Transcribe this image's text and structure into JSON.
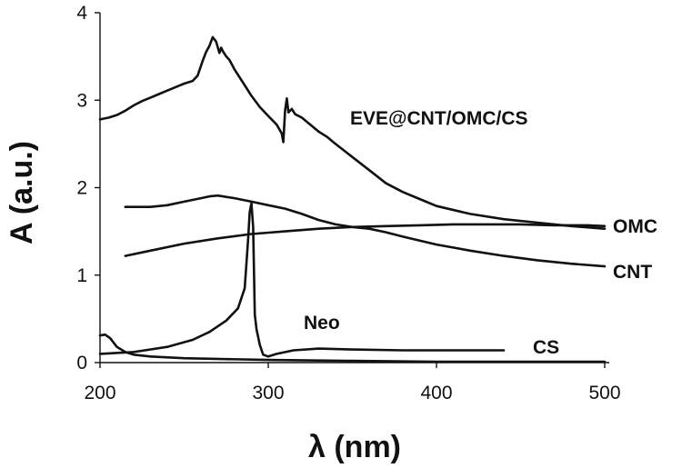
{
  "chart_data": {
    "type": "line",
    "xlabel": "λ (nm)",
    "ylabel": "A (a.u.)",
    "xlim": [
      200,
      500
    ],
    "ylim": [
      0,
      4
    ],
    "xticks": [
      "200",
      "300",
      "400",
      "500"
    ],
    "yticks": [
      "0",
      "1",
      "2",
      "3",
      "4"
    ],
    "grid": false,
    "legend": "inline labels",
    "line_color": "#111111",
    "series": [
      {
        "name": "EVE@CNT/OMC/CS",
        "x": [
          200,
          205,
          210,
          215,
          220,
          225,
          230,
          235,
          240,
          245,
          250,
          255,
          258,
          261,
          263,
          265,
          267,
          269,
          271,
          272,
          273,
          275,
          277,
          280,
          285,
          290,
          295,
          300,
          305,
          308,
          309,
          310,
          311,
          312,
          314,
          316,
          320,
          325,
          330,
          335,
          340,
          350,
          360,
          370,
          380,
          390,
          400,
          420,
          440,
          460,
          480,
          500
        ],
        "y": [
          2.78,
          2.8,
          2.83,
          2.88,
          2.94,
          2.99,
          3.03,
          3.07,
          3.11,
          3.15,
          3.19,
          3.22,
          3.28,
          3.45,
          3.55,
          3.62,
          3.72,
          3.67,
          3.54,
          3.6,
          3.56,
          3.5,
          3.46,
          3.35,
          3.2,
          3.05,
          2.92,
          2.82,
          2.72,
          2.62,
          2.52,
          2.88,
          3.02,
          2.86,
          2.9,
          2.84,
          2.8,
          2.72,
          2.64,
          2.58,
          2.5,
          2.35,
          2.2,
          2.05,
          1.95,
          1.87,
          1.79,
          1.7,
          1.64,
          1.6,
          1.56,
          1.53
        ]
      },
      {
        "name": "OMC",
        "x": [
          215,
          230,
          240,
          250,
          260,
          265,
          270,
          280,
          290,
          300,
          310,
          320,
          330,
          340,
          350,
          360,
          370,
          380,
          400,
          420,
          440,
          460,
          480,
          500
        ],
        "y": [
          1.78,
          1.78,
          1.8,
          1.84,
          1.88,
          1.9,
          1.91,
          1.88,
          1.84,
          1.8,
          1.76,
          1.7,
          1.63,
          1.58,
          1.55,
          1.53,
          1.49,
          1.44,
          1.35,
          1.28,
          1.22,
          1.17,
          1.13,
          1.1
        ]
      },
      {
        "name": "CNT",
        "x": [
          215,
          230,
          250,
          270,
          290,
          310,
          330,
          350,
          370,
          390,
          410,
          430,
          450,
          470,
          490,
          500
        ],
        "y": [
          1.22,
          1.28,
          1.36,
          1.42,
          1.47,
          1.5,
          1.53,
          1.55,
          1.56,
          1.57,
          1.58,
          1.58,
          1.58,
          1.57,
          1.57,
          1.56
        ]
      },
      {
        "name": "Neo",
        "x": [
          200,
          220,
          240,
          255,
          265,
          275,
          282,
          286,
          288,
          289,
          290,
          291,
          292,
          293,
          295,
          297,
          300,
          305,
          315,
          330,
          350,
          380,
          410,
          440
        ],
        "y": [
          0.1,
          0.12,
          0.18,
          0.26,
          0.35,
          0.48,
          0.62,
          0.85,
          1.4,
          1.72,
          1.82,
          1.55,
          0.55,
          0.38,
          0.2,
          0.09,
          0.07,
          0.1,
          0.14,
          0.16,
          0.15,
          0.14,
          0.14,
          0.14
        ]
      },
      {
        "name": "CS",
        "x": [
          200,
          203,
          206,
          210,
          215,
          220,
          230,
          250,
          300,
          350,
          400,
          450,
          500
        ],
        "y": [
          0.31,
          0.32,
          0.28,
          0.18,
          0.12,
          0.09,
          0.07,
          0.05,
          0.03,
          0.02,
          0.01,
          0.01,
          0.01
        ]
      }
    ],
    "annotations": [
      "EVE@CNT/OMC/CS",
      "OMC",
      "CNT",
      "Neo",
      "CS"
    ]
  }
}
